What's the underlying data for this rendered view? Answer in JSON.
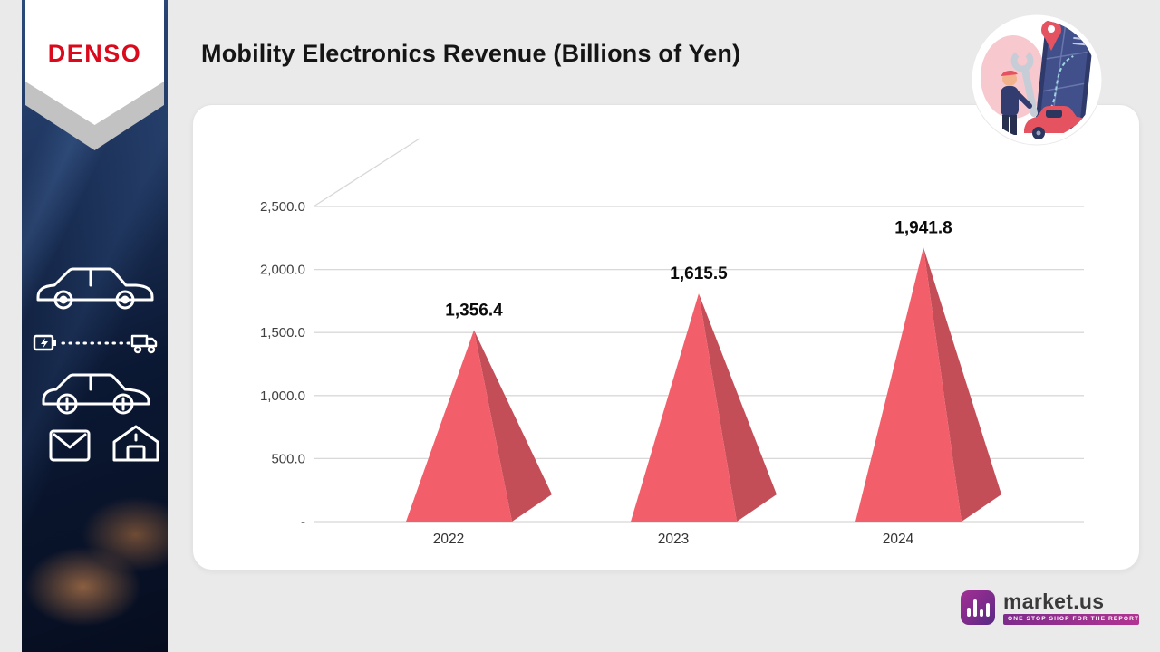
{
  "sidebar": {
    "brand": "DENSO",
    "brand_color": "#da0a1c",
    "icons": [
      "sedan-car-icon",
      "battery-icon",
      "delivery-truck-icon",
      "car-icon",
      "parcel-box-icon",
      "charging-house-icon"
    ]
  },
  "header": {
    "title": "Mobility Electronics Revenue (Billions of Yen)"
  },
  "chart_data": {
    "type": "bar",
    "shape": "3d-pyramid",
    "title": "Mobility Electronics Revenue (Billions of Yen)",
    "categories": [
      "2022",
      "2023",
      "2024"
    ],
    "values": [
      1356.4,
      1615.5,
      1941.8
    ],
    "data_labels": [
      "1,356.4",
      "1,615.5",
      "1,941.8"
    ],
    "ytick_labels": [
      "2,500.0",
      "2,000.0",
      "1,500.0",
      "1,000.0",
      "500.0",
      "-"
    ],
    "ylim": [
      0,
      2500
    ],
    "grid": true,
    "legend": false,
    "colors": {
      "front": "#f25f6a",
      "side": "#c44e58",
      "gridline": "#d8d8d8",
      "axis_text": "#3f3f3f",
      "data_label": "#0b0b0b"
    }
  },
  "badge": {
    "alt": "car-service-map-illustration"
  },
  "footer": {
    "brand": "market.us",
    "tagline": "ONE STOP SHOP FOR THE REPORTS"
  }
}
